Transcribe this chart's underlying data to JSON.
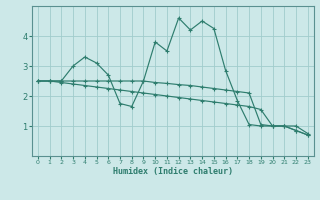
{
  "xlabel": "Humidex (Indice chaleur)",
  "xlim": [
    -0.5,
    23.5
  ],
  "ylim": [
    0,
    5
  ],
  "yticks": [
    1,
    2,
    3,
    4
  ],
  "xticks": [
    0,
    1,
    2,
    3,
    4,
    5,
    6,
    7,
    8,
    9,
    10,
    11,
    12,
    13,
    14,
    15,
    16,
    17,
    18,
    19,
    20,
    21,
    22,
    23
  ],
  "bg_color": "#cce8e8",
  "grid_color": "#a0cccc",
  "line_color": "#2e7d6e",
  "spine_color": "#5a9090",
  "lines": [
    {
      "x": [
        0,
        1,
        2,
        3,
        4,
        5,
        6,
        7,
        8,
        9,
        10,
        11,
        12,
        13,
        14,
        15,
        16,
        17,
        18,
        19,
        20,
        21,
        22,
        23
      ],
      "y": [
        2.5,
        2.5,
        2.5,
        2.5,
        2.5,
        2.5,
        2.5,
        2.5,
        2.5,
        2.5,
        2.45,
        2.42,
        2.38,
        2.35,
        2.3,
        2.25,
        2.2,
        2.15,
        2.1,
        1.05,
        1.0,
        1.0,
        1.0,
        0.75
      ]
    },
    {
      "x": [
        0,
        1,
        2,
        3,
        4,
        5,
        6,
        7,
        8,
        9,
        10,
        11,
        12,
        13,
        14,
        15,
        16,
        17,
        18,
        19,
        20,
        21,
        22,
        23
      ],
      "y": [
        2.5,
        2.5,
        2.5,
        3.0,
        3.3,
        3.1,
        2.7,
        1.75,
        1.65,
        2.5,
        3.8,
        3.5,
        4.6,
        4.2,
        4.5,
        4.25,
        2.85,
        1.85,
        1.05,
        1.0,
        1.0,
        1.0,
        0.85,
        0.7
      ]
    },
    {
      "x": [
        0,
        1,
        2,
        3,
        4,
        5,
        6,
        7,
        8,
        9,
        10,
        11,
        12,
        13,
        14,
        15,
        16,
        17,
        18,
        19,
        20,
        21,
        22,
        23
      ],
      "y": [
        2.5,
        2.5,
        2.45,
        2.4,
        2.35,
        2.3,
        2.25,
        2.2,
        2.15,
        2.1,
        2.05,
        2.0,
        1.95,
        1.9,
        1.85,
        1.8,
        1.75,
        1.7,
        1.65,
        1.55,
        1.0,
        1.0,
        0.85,
        0.7
      ]
    }
  ]
}
